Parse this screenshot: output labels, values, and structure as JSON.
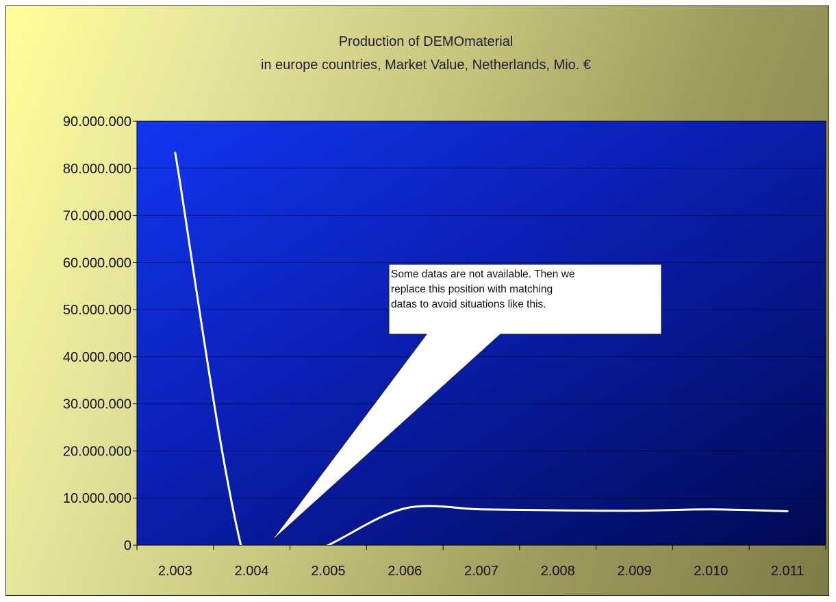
{
  "chart_data": {
    "type": "line",
    "title_lines": [
      "Production of DEMOmaterial",
      "in europe countries, Market Value, Netherlands, Mio. €"
    ],
    "xlabel": "",
    "ylabel": "",
    "categories": [
      "2.003",
      "2.004",
      "2.005",
      "2.006",
      "2.007",
      "2.008",
      "2.009",
      "2.010",
      "2.011"
    ],
    "y_ticks": [
      "0",
      "10.000.000",
      "20.000.000",
      "30.000.000",
      "40.000.000",
      "50.000.000",
      "60.000.000",
      "70.000.000",
      "80.000.000",
      "90.000.000"
    ],
    "ylim": [
      0,
      90000000
    ],
    "grid": true,
    "series": [
      {
        "values": [
          83300000,
          -8000000,
          0,
          7800000,
          7600000,
          7400000,
          7300000,
          7600000,
          7200000
        ]
      }
    ],
    "annotation": {
      "lines": [
        "Some datas are not available. Then we",
        "replace this position with matching",
        "datas to avoid situations like this."
      ],
      "points_to_category": "2.005",
      "points_to_value": 0
    },
    "colors": {
      "plot_top_left": "#1133ee",
      "plot_bottom_right": "#000a55",
      "line": "#ffffff"
    }
  }
}
